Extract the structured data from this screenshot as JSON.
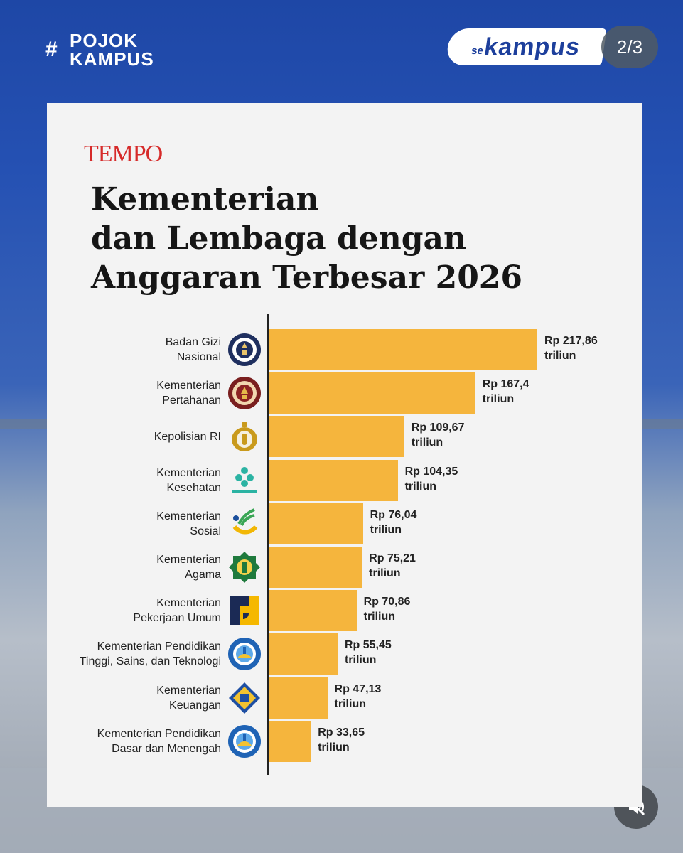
{
  "header": {
    "hashtag_line1": "POJOK",
    "hashtag_line2": "KAMPUS",
    "brand_prefix": "se",
    "brand_name": "kampus",
    "page_counter": "2/3"
  },
  "colors": {
    "bar": "#f5b53d",
    "brand_red": "#d62a29",
    "background_blue": "#1e47a6"
  },
  "chart_data": {
    "type": "bar",
    "orientation": "horizontal",
    "source": "TEMPO",
    "title_lines": [
      "Kementerian",
      "dan Lembaga dengan",
      "Anggaran Terbesar 2026"
    ],
    "unit": "triliun",
    "xlim": [
      0,
      217.86
    ],
    "categories": [
      {
        "line1": "Badan Gizi",
        "line2": "Nasional",
        "value": 217.86,
        "value_label": "Rp 217,86",
        "logo": "bgn-emblem"
      },
      {
        "line1": "Kementerian",
        "line2": "Pertahanan",
        "value": 167.4,
        "value_label": "Rp 167,4",
        "logo": "kemhan-emblem"
      },
      {
        "line1": "Kepolisian RI",
        "line2": "",
        "value": 109.67,
        "value_label": "Rp 109,67",
        "logo": "polri-emblem"
      },
      {
        "line1": "Kementerian",
        "line2": "Kesehatan",
        "value": 104.35,
        "value_label": "Rp 104,35",
        "logo": "kemenkes-logo"
      },
      {
        "line1": "Kementerian",
        "line2": "Sosial",
        "value": 76.04,
        "value_label": "Rp 76,04",
        "logo": "kemensos-logo"
      },
      {
        "line1": "Kementerian",
        "line2": "Agama",
        "value": 75.21,
        "value_label": "Rp 75,21",
        "logo": "kemenag-emblem"
      },
      {
        "line1": "Kementerian",
        "line2": "Pekerjaan Umum",
        "value": 70.86,
        "value_label": "Rp 70,86",
        "logo": "pu-logo"
      },
      {
        "line1": "Kementerian Pendidikan",
        "line2": "Tinggi, Sains, dan Teknologi",
        "value": 55.45,
        "value_label": "Rp 55,45",
        "logo": "tutwuri-emblem"
      },
      {
        "line1": "Kementerian",
        "line2": "Keuangan",
        "value": 47.13,
        "value_label": "Rp 47,13",
        "logo": "kemenkeu-emblem"
      },
      {
        "line1": "Kementerian Pendidikan",
        "line2": "Dasar dan Menengah",
        "value": 33.65,
        "value_label": "Rp 33,65",
        "logo": "tutwuri-emblem"
      }
    ]
  }
}
